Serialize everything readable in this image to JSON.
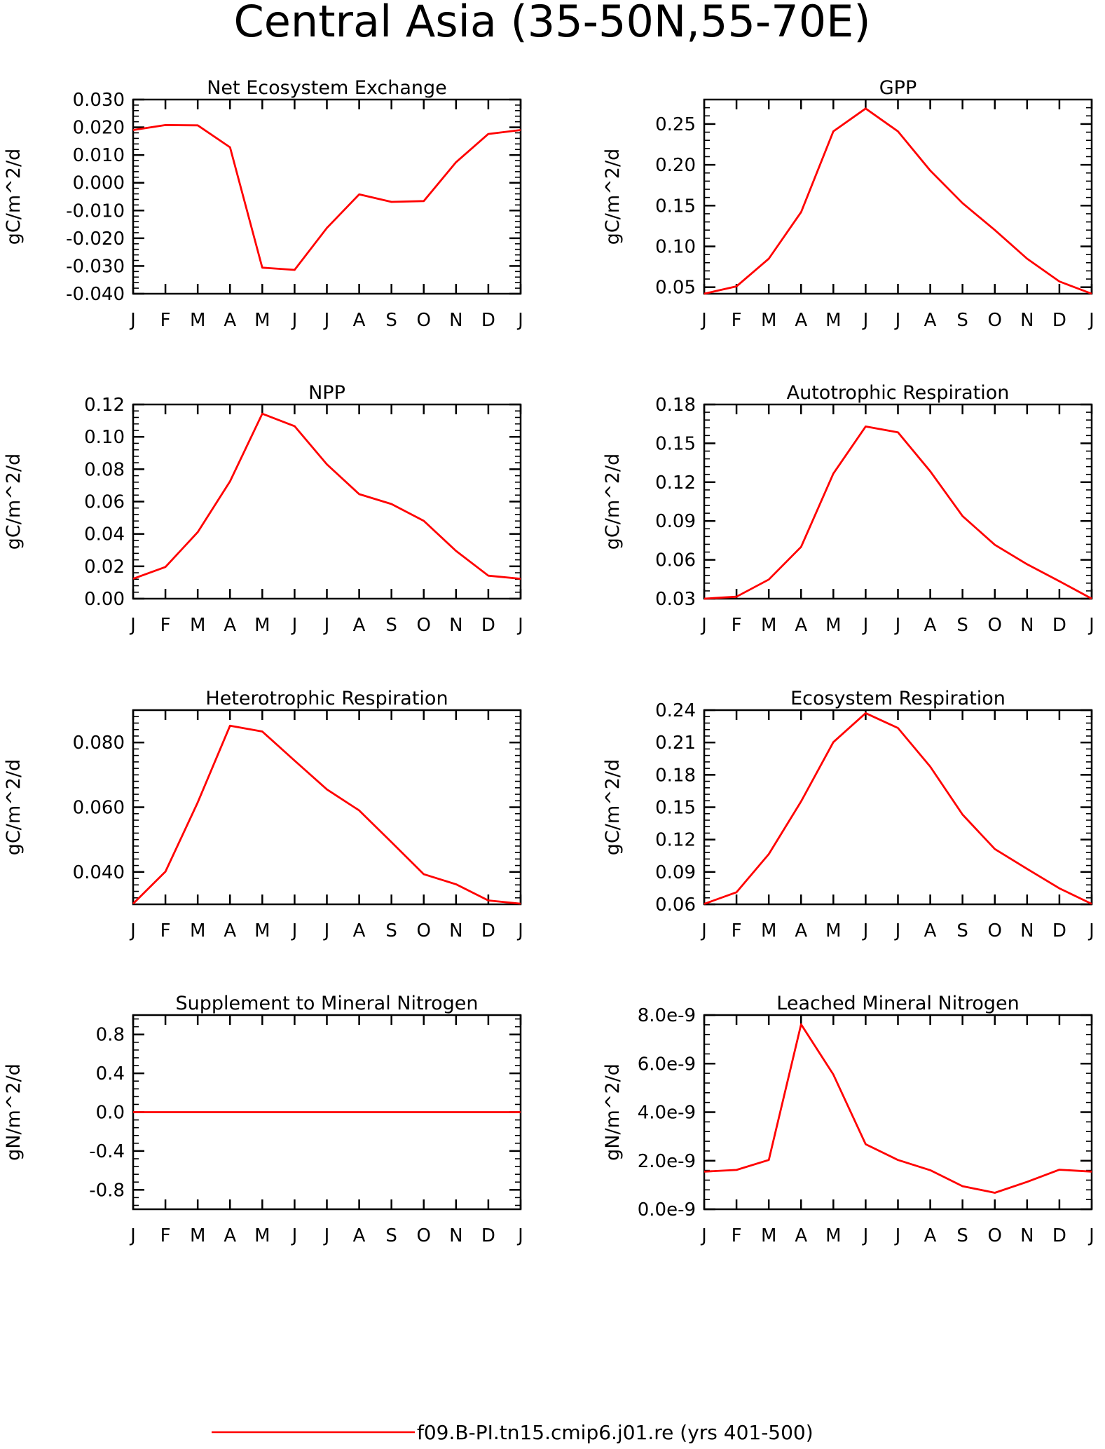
{
  "title": "Central Asia (35-50N,55-70E)",
  "legend": {
    "label": "f09.B-PI.tn15.cmip6.j01.re (yrs 401-500)",
    "color": "#ff0000"
  },
  "chart_data": [
    {
      "type": "line",
      "title": "Net Ecosystem Exchange",
      "ylabel": "gC/m^2/d",
      "categories": [
        "J",
        "F",
        "M",
        "A",
        "M",
        "J",
        "J",
        "A",
        "S",
        "O",
        "N",
        "D",
        "J"
      ],
      "ylim": [
        -0.04,
        0.03
      ],
      "yticks": [
        -0.04,
        -0.03,
        -0.02,
        -0.01,
        0.0,
        0.01,
        0.02,
        0.03
      ],
      "yticklabels": [
        "-0.040",
        "-0.030",
        "-0.020",
        "-0.010",
        "0.000",
        "0.010",
        "0.020",
        "0.030"
      ],
      "yminor": 0.002,
      "series": [
        {
          "values": [
            0.019,
            0.0208,
            0.0207,
            0.0128,
            -0.0306,
            -0.0314,
            -0.0163,
            -0.0042,
            -0.0069,
            -0.0066,
            0.0074,
            0.0176,
            0.019
          ]
        }
      ]
    },
    {
      "type": "line",
      "title": "GPP",
      "ylabel": "gC/m^2/d",
      "categories": [
        "J",
        "F",
        "M",
        "A",
        "M",
        "J",
        "J",
        "A",
        "S",
        "O",
        "N",
        "D",
        "J"
      ],
      "ylim": [
        0.042,
        0.28
      ],
      "yticks": [
        0.05,
        0.1,
        0.15,
        0.2,
        0.25
      ],
      "yticklabels": [
        "0.05",
        "0.10",
        "0.15",
        "0.20",
        "0.25"
      ],
      "yminor": 0.01,
      "series": [
        {
          "values": [
            0.042,
            0.051,
            0.085,
            0.142,
            0.241,
            0.269,
            0.241,
            0.193,
            0.153,
            0.12,
            0.085,
            0.057,
            0.042
          ]
        }
      ]
    },
    {
      "type": "line",
      "title": "NPP",
      "ylabel": "gC/m^2/d",
      "categories": [
        "J",
        "F",
        "M",
        "A",
        "M",
        "J",
        "J",
        "A",
        "S",
        "O",
        "N",
        "D",
        "J"
      ],
      "ylim": [
        0.0,
        0.12
      ],
      "yticks": [
        0.0,
        0.02,
        0.04,
        0.06,
        0.08,
        0.1,
        0.12
      ],
      "yticklabels": [
        "0.00",
        "0.02",
        "0.04",
        "0.06",
        "0.08",
        "0.10",
        "0.12"
      ],
      "yminor": 0.004,
      "series": [
        {
          "values": [
            0.0123,
            0.0196,
            0.0411,
            0.0725,
            0.1143,
            0.1066,
            0.083,
            0.0646,
            0.0585,
            0.0481,
            0.0295,
            0.0142,
            0.0123
          ]
        }
      ]
    },
    {
      "type": "line",
      "title": "Autotrophic Respiration",
      "ylabel": "gC/m^2/d",
      "categories": [
        "J",
        "F",
        "M",
        "A",
        "M",
        "J",
        "J",
        "A",
        "S",
        "O",
        "N",
        "D",
        "J"
      ],
      "ylim": [
        0.03,
        0.18
      ],
      "yticks": [
        0.03,
        0.06,
        0.09,
        0.12,
        0.15,
        0.18
      ],
      "yticklabels": [
        "0.03",
        "0.06",
        "0.09",
        "0.12",
        "0.15",
        "0.18"
      ],
      "yminor": 0.006,
      "series": [
        {
          "values": [
            0.03,
            0.0315,
            0.0448,
            0.07,
            0.1266,
            0.163,
            0.1585,
            0.1284,
            0.0938,
            0.0716,
            0.0566,
            0.0435,
            0.03
          ]
        }
      ]
    },
    {
      "type": "line",
      "title": "Heterotrophic Respiration",
      "ylabel": "gC/m^2/d",
      "categories": [
        "J",
        "F",
        "M",
        "A",
        "M",
        "J",
        "J",
        "A",
        "S",
        "O",
        "N",
        "D",
        "J"
      ],
      "ylim": [
        0.03,
        0.09
      ],
      "yticks": [
        0.04,
        0.06,
        0.08
      ],
      "yticklabels": [
        "0.040",
        "0.060",
        "0.080"
      ],
      "yminor": 0.002,
      "series": [
        {
          "values": [
            0.0302,
            0.0401,
            0.0615,
            0.0852,
            0.0834,
            0.0744,
            0.0655,
            0.059,
            0.0492,
            0.0393,
            0.0362,
            0.0312,
            0.0302
          ]
        }
      ]
    },
    {
      "type": "line",
      "title": "Ecosystem Respiration",
      "ylabel": "gC/m^2/d",
      "categories": [
        "J",
        "F",
        "M",
        "A",
        "M",
        "J",
        "J",
        "A",
        "S",
        "O",
        "N",
        "D",
        "J"
      ],
      "ylim": [
        0.06,
        0.24
      ],
      "yticks": [
        0.06,
        0.09,
        0.12,
        0.15,
        0.18,
        0.21,
        0.24
      ],
      "yticklabels": [
        "0.06",
        "0.09",
        "0.12",
        "0.15",
        "0.18",
        "0.21",
        "0.24"
      ],
      "yminor": 0.006,
      "series": [
        {
          "values": [
            0.0604,
            0.0712,
            0.1065,
            0.1554,
            0.2103,
            0.2372,
            0.2234,
            0.1876,
            0.1432,
            0.1112,
            0.0929,
            0.0748,
            0.0604
          ]
        }
      ]
    },
    {
      "type": "line",
      "title": "Supplement to Mineral Nitrogen",
      "ylabel": "gN/m^2/d",
      "categories": [
        "J",
        "F",
        "M",
        "A",
        "M",
        "J",
        "J",
        "A",
        "S",
        "O",
        "N",
        "D",
        "J"
      ],
      "ylim": [
        -1.0,
        1.0
      ],
      "yticks": [
        -0.8,
        -0.4,
        0.0,
        0.4,
        0.8
      ],
      "yticklabels": [
        "-0.8",
        "-0.4",
        "0.0",
        "0.4",
        "0.8"
      ],
      "yminor": 0.08,
      "series": [
        {
          "values": [
            0,
            0,
            0,
            0,
            0,
            0,
            0,
            0,
            0,
            0,
            0,
            0,
            0
          ]
        }
      ]
    },
    {
      "type": "line",
      "title": "Leached Mineral Nitrogen",
      "ylabel": "gN/m^2/d",
      "categories": [
        "J",
        "F",
        "M",
        "A",
        "M",
        "J",
        "J",
        "A",
        "S",
        "O",
        "N",
        "D",
        "J"
      ],
      "ylim": [
        0.0,
        8e-09
      ],
      "yticks": [
        0.0,
        2e-09,
        4e-09,
        6e-09,
        8e-09
      ],
      "yticklabels": [
        "0.0e-9",
        "2.0e-9",
        "4.0e-9",
        "6.0e-9",
        "8.0e-9"
      ],
      "yminor": 4e-10,
      "series": [
        {
          "values": [
            1.55e-09,
            1.62e-09,
            2.03e-09,
            7.62e-09,
            5.55e-09,
            2.68e-09,
            2.03e-09,
            1.61e-09,
            9.5e-10,
            6.8e-10,
            1.13e-09,
            1.63e-09,
            1.55e-09
          ]
        }
      ]
    }
  ]
}
